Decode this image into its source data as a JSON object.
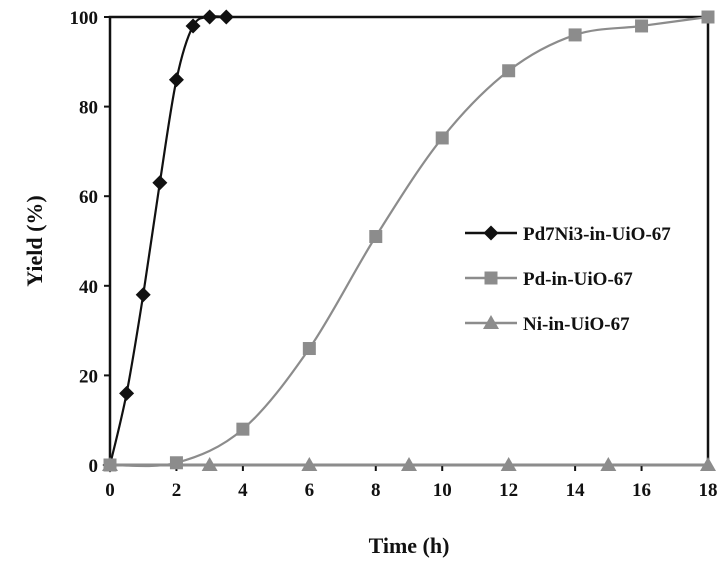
{
  "chart_data": {
    "type": "scatter",
    "xlabel": "Time (h)",
    "ylabel": "Yield (%)",
    "xlim": [
      0,
      18
    ],
    "ylim": [
      0,
      100
    ],
    "xticks": [
      "0",
      "2",
      "4",
      "6",
      "8",
      "10",
      "12",
      "14",
      "16",
      "18"
    ],
    "yticks": [
      "0",
      "20",
      "40",
      "60",
      "80",
      "100"
    ],
    "grid": false,
    "legend_position": "right",
    "series": [
      {
        "name": "Pd7Ni3-in-UiO-67",
        "color": "#111111",
        "marker": "diamond",
        "x": [
          0,
          0.5,
          1,
          1.5,
          2,
          2.5,
          3,
          3.5
        ],
        "y": [
          0,
          16,
          38,
          63,
          86,
          98,
          100,
          100
        ]
      },
      {
        "name": "Pd-in-UiO-67",
        "color": "#8c8c8c",
        "marker": "square",
        "x": [
          0,
          2,
          4,
          6,
          8,
          10,
          12,
          14,
          16,
          18
        ],
        "y": [
          0,
          0.5,
          8,
          26,
          51,
          73,
          88,
          96,
          98,
          100
        ]
      },
      {
        "name": "Ni-in-UiO-67",
        "color": "#8c8c8c",
        "marker": "triangle",
        "x": [
          0,
          3,
          6,
          9,
          12,
          15,
          18
        ],
        "y": [
          0,
          0,
          0,
          0,
          0,
          0,
          0
        ]
      }
    ]
  }
}
